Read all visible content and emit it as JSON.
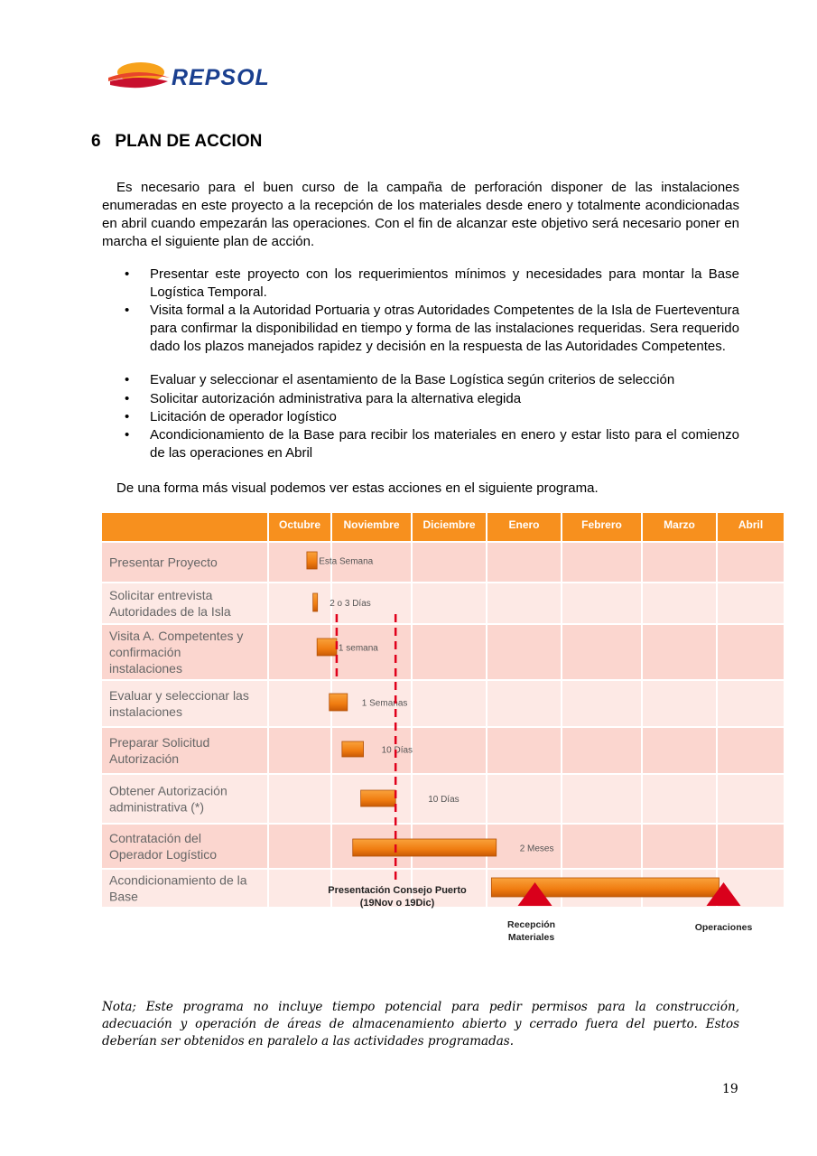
{
  "logo": {
    "text": "REPSOL"
  },
  "heading": "6   PLAN DE ACCION",
  "intro": "Es necesario para el buen curso de la campaña de perforación disponer de las instalaciones enumeradas en este proyecto a la recepción de los materiales desde enero y totalmente acondicionadas en abril cuando empezarán las operaciones. Con el fin de alcanzar este objetivo será necesario poner en marcha el siguiente plan de acción.",
  "bullets": [
    "Presentar este proyecto con los requerimientos mínimos y necesidades para montar la Base Logística Temporal.",
    "Visita formal a la Autoridad Portuaria y otras Autoridades Competentes de la Isla de Fuerteventura para confirmar la disponibilidad en tiempo y forma de las instalaciones requeridas. Sera requerido dado los plazos manejados rapidez y decisión en la respuesta de las Autoridades Competentes.",
    "Evaluar y seleccionar el asentamiento de la Base Logística según criterios de selección",
    "Solicitar autorización administrativa para la alternativa elegida",
    "Licitación de operador logístico",
    "Acondicionamiento de la Base para recibir los materiales en enero y estar listo para el comienzo de las operaciones en Abril"
  ],
  "outro": "De una forma más visual podemos ver estas acciones en el siguiente programa.",
  "gantt": {
    "months": [
      "Octubre",
      "Noviembre",
      "Diciembre",
      "Enero",
      "Febrero",
      "Marzo",
      "Abril"
    ],
    "colors": {
      "header": "#f7901e",
      "row_dark": "#fbd6cf",
      "row_light": "#fde9e5",
      "bar": "#f07c10",
      "milestone": "#d9001b",
      "dash": "#e0001b"
    },
    "tasks": [
      {
        "name": [
          "Presentar Proyecto"
        ],
        "start": "Oct 19",
        "end": "Oct 24",
        "label": "Esta Semana"
      },
      {
        "name": [
          "Solicitar entrevista",
          "Autoridades de la Isla"
        ],
        "start": "Oct 22",
        "end": "Oct 24",
        "label": "2 o 3 Días"
      },
      {
        "name": [
          "Visita A. Competentes y",
          "confirmación",
          "instalaciones"
        ],
        "start": "Oct 24",
        "end": "Nov 2",
        "label": "1 semana"
      },
      {
        "name": [
          "Evaluar y seleccionar las",
          "instalaciones"
        ],
        "start": "Oct 30",
        "end": "Nov 6",
        "label": "1 Semanas"
      },
      {
        "name": [
          "Preparar Solicitud",
          "Autorización"
        ],
        "start": "Nov 4",
        "end": "Nov 12",
        "label": "10 Días"
      },
      {
        "name": [
          "Obtener Autorización",
          "administrativa (*)"
        ],
        "start": "Nov 11",
        "end": "Nov 24",
        "label": "10 Días"
      },
      {
        "name": [
          "Contratación del",
          "Operador Logístico"
        ],
        "start": "Nov 8",
        "end": "Jan 4",
        "label": "2 Meses"
      },
      {
        "name": [
          "Acondicionamiento de la",
          "Base"
        ],
        "start": "Jan 2",
        "end": "Apr 1",
        "label": ""
      }
    ],
    "milestones": [
      {
        "date": "Jan 20",
        "label": [
          "Recepción",
          "Materiales"
        ]
      },
      {
        "date": "Apr 3",
        "label": [
          "Operaciones"
        ]
      }
    ],
    "deadline": {
      "dates": [
        "Nov 2",
        "Nov 24"
      ],
      "label": [
        "Presentación Consejo Puerto",
        "(19Nov o 19Dic)"
      ]
    }
  },
  "note": "Nota; Este programa no incluye tiempo potencial para pedir permisos para la construcción, adecuación y operación de áreas de almacenamiento abierto y cerrado fuera del puerto. Estos deberían ser obtenidos en paralelo a las actividades programadas.",
  "page_number": "19"
}
